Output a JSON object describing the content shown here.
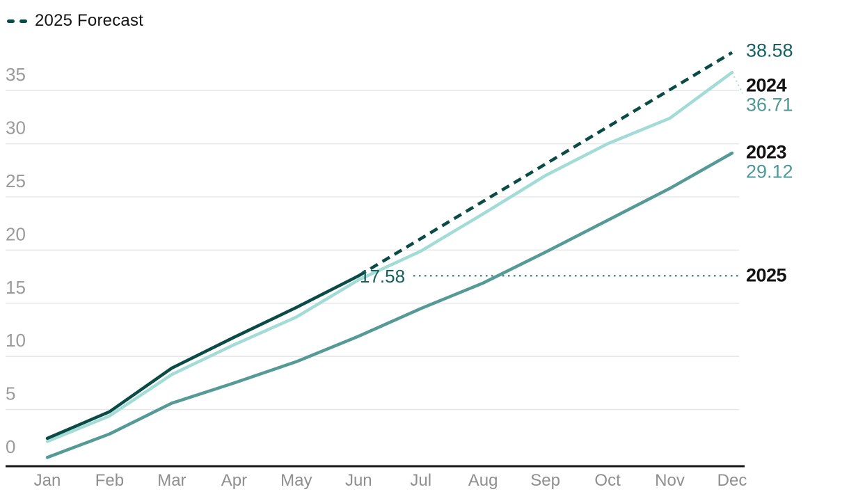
{
  "chart_data": {
    "type": "line",
    "title": "",
    "legend": "2025 Forecast",
    "legend_position": "top-left",
    "grid": "horizontal",
    "x_categories": [
      "Jan",
      "Feb",
      "Mar",
      "Apr",
      "May",
      "Jun",
      "Jul",
      "Aug",
      "Sep",
      "Oct",
      "Nov",
      "Dec"
    ],
    "y_ticks": [
      0,
      5,
      10,
      15,
      20,
      25,
      30,
      35
    ],
    "ylim": [
      0,
      40
    ],
    "series": [
      {
        "name": "2023",
        "style": "solid",
        "color_key": "line_2023",
        "values": [
          0.5,
          2.7,
          5.6,
          7.5,
          9.5,
          11.9,
          14.5,
          16.9,
          19.8,
          22.8,
          25.8,
          29.12
        ]
      },
      {
        "name": "2024",
        "style": "solid",
        "color_key": "line_2024",
        "values": [
          2.0,
          4.4,
          8.3,
          11.1,
          13.7,
          17.2,
          19.9,
          23.4,
          27.0,
          30.0,
          32.4,
          36.71
        ]
      },
      {
        "name": "2025",
        "style": "solid",
        "color_key": "line_2025",
        "values": [
          2.3,
          4.8,
          8.9,
          11.8,
          14.6,
          17.58,
          null,
          null,
          null,
          null,
          null,
          null
        ]
      },
      {
        "name": "2025 Forecast",
        "style": "dashed",
        "color_key": "line_2025",
        "values": [
          null,
          null,
          null,
          null,
          null,
          17.58,
          21.08,
          24.58,
          28.08,
          31.58,
          35.08,
          38.58
        ]
      }
    ],
    "annotations": {
      "forecast_end_value": "38.58",
      "label_2024": "2024",
      "value_2024": "36.71",
      "label_2023": "2023",
      "value_2023": "29.12",
      "label_2025": "2025",
      "midyear_value": "17.58"
    }
  },
  "colors": {
    "line_2025": "#0A4B46",
    "line_2024": "#A3DCD6",
    "line_2023": "#559A96",
    "value_dark_text": "#166061",
    "value_medium_text": "#4F9997",
    "year_text": "#131313",
    "axis_label": "#9B9B9B",
    "month_label": "#8F8F8F",
    "gridline": "#E8E8E8",
    "axis_line": "#161616",
    "guide_dotted": "#2A6A6D"
  }
}
